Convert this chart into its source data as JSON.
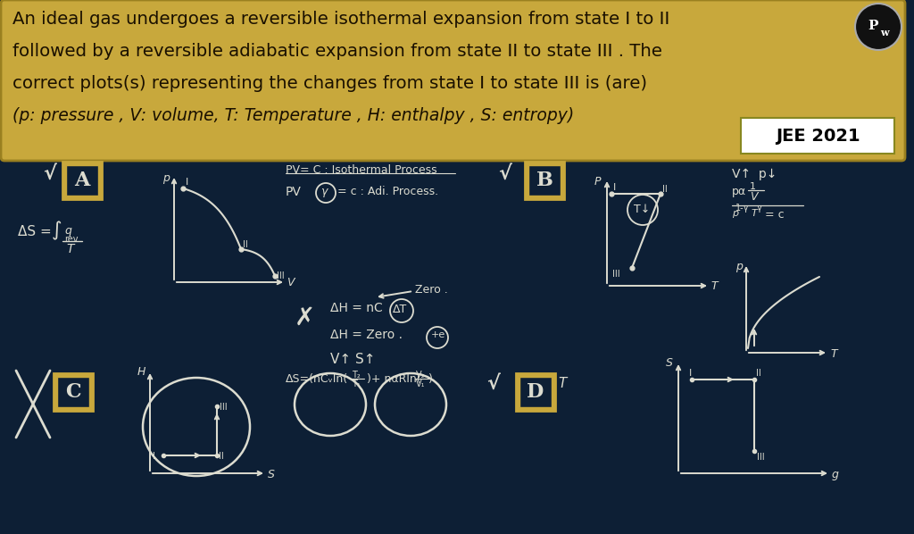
{
  "bg_color": "#0d1f35",
  "box_facecolor": "#c8a83c",
  "box_edgecolor": "#9a8020",
  "text_color_dark": "#1a1000",
  "chalk": "#dcdcd0",
  "chalk_bright": "#f0f0e8",
  "title_line1": "An ideal gas undergoes a reversible isothermal expansion from state I to II",
  "title_line2": "followed by a reversible adiabatic expansion from state II to state III . The",
  "title_line3": "correct plots(s) representing the changes from state I to state III is (are)",
  "title_line4": "(p: pressure , V: volume, T: Temperature , H: enthalpy , S: entropy)",
  "jee_label": "JEE 2021"
}
